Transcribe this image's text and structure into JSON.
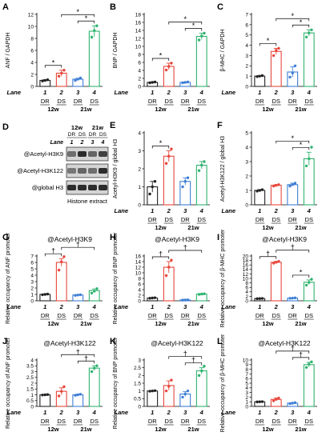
{
  "colors": {
    "DR": "#222222",
    "DS": "#e8463b",
    "DR21": "#3f7fd6",
    "DS21": "#2fb36f",
    "blot": "#1a1a1a"
  },
  "blot": {
    "panel_label": "D",
    "group_headers": [
      "12w",
      "21w"
    ],
    "condition_labels": [
      "DR",
      "DS",
      "DR",
      "DS"
    ],
    "lane_prefix": "Lane",
    "lanes": [
      "1",
      "2",
      "3",
      "4"
    ],
    "row_labels": [
      "@Acetyl-H3K9",
      "@Acetyl-H3K122",
      "@global H3"
    ],
    "footer": "Histone extract"
  },
  "chart_data": [
    {
      "panel": "A",
      "type": "bar",
      "title": "",
      "ylabel": "ANF / GAPDH",
      "ylim": [
        0,
        12
      ],
      "yticks": [
        0,
        2,
        4,
        6,
        8,
        10,
        12
      ],
      "lane_prefix": "Lane",
      "categories": [
        "1",
        "2",
        "3",
        "4"
      ],
      "groups": [
        "DR",
        "DS",
        "DR",
        "DS"
      ],
      "timepoints": [
        "12w",
        "21w"
      ],
      "values": [
        1.0,
        2.2,
        1.2,
        9.2
      ],
      "errors": [
        0.1,
        0.5,
        0.15,
        0.9
      ],
      "points": [
        [
          0.9,
          1.0,
          1.1
        ],
        [
          1.7,
          2.2,
          2.7
        ],
        [
          1.0,
          1.2,
          1.4
        ],
        [
          8.2,
          9.3,
          10.1
        ]
      ],
      "annotations": [
        {
          "from": 1,
          "to": 2,
          "label": "*"
        },
        {
          "from": 3,
          "to": 4,
          "label": "*"
        },
        {
          "from": 2,
          "to": 4,
          "label": "*"
        }
      ]
    },
    {
      "panel": "B",
      "type": "bar",
      "title": "",
      "ylabel": "BNP / GAPDH",
      "ylim": [
        0,
        18
      ],
      "yticks": [
        0,
        2,
        4,
        6,
        8,
        10,
        12,
        14,
        16,
        18
      ],
      "lane_prefix": "Lane",
      "categories": [
        "1",
        "2",
        "3",
        "4"
      ],
      "groups": [
        "DR",
        "DS",
        "DR",
        "DS"
      ],
      "timepoints": [
        "12w",
        "21w"
      ],
      "values": [
        1.0,
        5.0,
        1.0,
        12.5
      ],
      "errors": [
        0.1,
        0.8,
        0.1,
        0.8
      ],
      "points": [
        [
          0.9,
          1.0,
          1.1
        ],
        [
          4.1,
          5.0,
          5.8
        ],
        [
          0.9,
          1.0,
          1.1
        ],
        [
          11.6,
          12.6,
          13.3
        ]
      ],
      "annotations": [
        {
          "from": 1,
          "to": 2,
          "label": "*"
        },
        {
          "from": 3,
          "to": 4,
          "label": "*"
        },
        {
          "from": 2,
          "to": 4,
          "label": "*"
        }
      ]
    },
    {
      "panel": "C",
      "type": "bar",
      "title": "",
      "ylabel": "β-MHC / GAPDH",
      "ylim": [
        0,
        7
      ],
      "yticks": [
        0,
        1,
        2,
        3,
        4,
        5,
        6,
        7
      ],
      "lane_prefix": "Lane",
      "categories": [
        "1",
        "2",
        "3",
        "4"
      ],
      "groups": [
        "DR",
        "DS",
        "DR",
        "DS"
      ],
      "timepoints": [
        "12w",
        "21w"
      ],
      "values": [
        1.0,
        3.4,
        1.4,
        5.2
      ],
      "errors": [
        0.05,
        0.3,
        0.5,
        0.3
      ],
      "points": [
        [
          0.95,
          1.0,
          1.05
        ],
        [
          3.0,
          3.5,
          3.7
        ],
        [
          0.9,
          1.3,
          2.0
        ],
        [
          4.8,
          5.2,
          5.5
        ]
      ],
      "annotations": [
        {
          "from": 1,
          "to": 2,
          "label": "*"
        },
        {
          "from": 3,
          "to": 4,
          "label": "*"
        },
        {
          "from": 2,
          "to": 4,
          "label": "*"
        }
      ]
    },
    {
      "panel": "E",
      "type": "bar",
      "title": "",
      "ylabel": "Acetyl-H3K9 / global H3",
      "ylim": [
        0,
        4
      ],
      "yticks": [
        0,
        1,
        2,
        3,
        4
      ],
      "lane_prefix": "Lane",
      "categories": [
        "1",
        "2",
        "3",
        "4"
      ],
      "groups": [
        "DR",
        "DS",
        "DR",
        "DS"
      ],
      "timepoints": [
        "12w",
        "21w"
      ],
      "values": [
        1.0,
        2.7,
        1.3,
        2.2
      ],
      "errors": [
        0.3,
        0.3,
        0.2,
        0.2
      ],
      "points": [
        [
          0.6,
          1.0,
          1.3
        ],
        [
          2.3,
          2.7,
          3.1
        ],
        [
          1.0,
          1.3,
          1.5
        ],
        [
          1.9,
          2.2,
          2.4
        ]
      ],
      "annotations": [
        {
          "from": 1,
          "to": 2,
          "label": "*"
        }
      ]
    },
    {
      "panel": "F",
      "type": "bar",
      "title": "",
      "ylabel": "Acetyl-H3K122 / global H3",
      "ylim": [
        0,
        5
      ],
      "yticks": [
        0,
        1,
        2,
        3,
        4,
        5
      ],
      "lane_prefix": "Lane",
      "categories": [
        "1",
        "2",
        "3",
        "4"
      ],
      "groups": [
        "DR",
        "DS",
        "DR",
        "DS"
      ],
      "timepoints": [
        "12w",
        "21w"
      ],
      "values": [
        1.0,
        1.35,
        1.4,
        3.2
      ],
      "errors": [
        0.05,
        0.05,
        0.1,
        0.45
      ],
      "points": [
        [
          0.95,
          1.0,
          1.05
        ],
        [
          1.3,
          1.35,
          1.4
        ],
        [
          1.3,
          1.4,
          1.5
        ],
        [
          2.7,
          3.2,
          4.0
        ]
      ],
      "annotations": [
        {
          "from": 3,
          "to": 4,
          "label": "*"
        },
        {
          "from": 2,
          "to": 4,
          "label": "*"
        }
      ]
    },
    {
      "panel": "G",
      "type": "bar",
      "title": "@Acetyl-H3K9",
      "ylabel": "Relative occupancy of ANF promoter",
      "ylim": [
        0,
        7
      ],
      "yticks": [
        0,
        1,
        2,
        3,
        4,
        5,
        6,
        7
      ],
      "lane_prefix": "Lane",
      "categories": [
        "1",
        "2",
        "3",
        "4"
      ],
      "groups": [
        "DR",
        "DS",
        "DR",
        "DS"
      ],
      "timepoints": [
        "12w",
        "21w"
      ],
      "values": [
        1.0,
        6.0,
        0.9,
        1.6
      ],
      "errors": [
        0.05,
        0.6,
        0.05,
        0.25
      ],
      "points": [
        [
          0.95,
          1.0,
          1.05
        ],
        [
          4.8,
          6.1,
          6.9
        ],
        [
          0.85,
          0.9,
          0.95
        ],
        [
          1.2,
          1.5,
          1.9
        ]
      ],
      "annotations": [
        {
          "from": 1,
          "to": 2,
          "label": "†"
        },
        {
          "from": 2,
          "to": 4,
          "label": "†"
        }
      ]
    },
    {
      "panel": "H",
      "type": "bar",
      "title": "@Acetyl-H3K9",
      "ylabel": "Relative occupancy of BNP promoter",
      "ylim": [
        0,
        16
      ],
      "yticks": [
        0,
        2,
        4,
        6,
        8,
        10,
        12,
        14,
        16
      ],
      "lane_prefix": "Lane",
      "categories": [
        "1",
        "2",
        "3",
        "4"
      ],
      "groups": [
        "DR",
        "DS",
        "DR",
        "DS"
      ],
      "timepoints": [
        "12w",
        "21w"
      ],
      "values": [
        1.0,
        12.0,
        0.3,
        2.4
      ],
      "errors": [
        0.1,
        2.0,
        0.05,
        0.1
      ],
      "points": [
        [
          0.9,
          1.0,
          1.1
        ],
        [
          9.0,
          12.0,
          14.5
        ],
        [
          0.25,
          0.3,
          0.35
        ],
        [
          2.3,
          2.4,
          2.5
        ]
      ],
      "annotations": [
        {
          "from": 1,
          "to": 2,
          "label": "†"
        },
        {
          "from": 2,
          "to": 4,
          "label": "†"
        }
      ]
    },
    {
      "panel": "I",
      "type": "bar",
      "title": "@Acetyl-H3K9",
      "ylabel": "Relative occupancy of β-MHC promoter",
      "ylim": [
        0,
        20
      ],
      "yticks": [
        0,
        2,
        4,
        6,
        8,
        10,
        12,
        14,
        16,
        18,
        20
      ],
      "lane_prefix": "Lane",
      "categories": [
        "1",
        "2",
        "3",
        "4"
      ],
      "groups": [
        "DR",
        "DS",
        "DR",
        "DS"
      ],
      "timepoints": [
        "12w",
        "21w"
      ],
      "values": [
        1.0,
        17.2,
        1.2,
        8.3
      ],
      "errors": [
        0.05,
        0.4,
        0.1,
        1.0
      ],
      "points": [
        [
          0.95,
          1.0,
          1.05
        ],
        [
          16.8,
          17.2,
          17.6
        ],
        [
          1.1,
          1.2,
          1.3
        ],
        [
          7.0,
          8.2,
          9.6
        ]
      ],
      "annotations": [
        {
          "from": 1,
          "to": 2,
          "label": "†"
        },
        {
          "from": 3,
          "to": 4,
          "label": "*"
        },
        {
          "from": 2,
          "to": 4,
          "label": "†"
        }
      ]
    },
    {
      "panel": "J",
      "type": "bar",
      "title": "@Acetyl-H3K122",
      "ylabel": "Relative occupancy of ANF promoter",
      "ylim": [
        0,
        4
      ],
      "yticks": [
        0,
        0.5,
        1,
        1.5,
        2,
        2.5,
        3,
        3.5,
        4
      ],
      "lane_prefix": "Lane",
      "categories": [
        "1",
        "2",
        "3",
        "4"
      ],
      "groups": [
        "DR",
        "DS",
        "DR",
        "DS"
      ],
      "timepoints": [
        "12w",
        "21w"
      ],
      "values": [
        1.0,
        1.3,
        1.0,
        3.3
      ],
      "errors": [
        0.02,
        0.3,
        0.05,
        0.2
      ],
      "points": [
        [
          0.98,
          1.0,
          1.02
        ],
        [
          0.9,
          1.3,
          1.7
        ],
        [
          0.95,
          1.0,
          1.05
        ],
        [
          3.0,
          3.3,
          3.5
        ]
      ],
      "annotations": [
        {
          "from": 3,
          "to": 4,
          "label": "†"
        },
        {
          "from": 2,
          "to": 4,
          "label": "†"
        }
      ]
    },
    {
      "panel": "K",
      "type": "bar",
      "title": "@Acetyl-H3K122",
      "ylabel": "Relative occupancy of BNP promoter",
      "ylim": [
        0,
        3
      ],
      "yticks": [
        0,
        0.5,
        1,
        1.5,
        2,
        2.5,
        3
      ],
      "lane_prefix": "Lane",
      "categories": [
        "1",
        "2",
        "3",
        "4"
      ],
      "groups": [
        "DR",
        "DS",
        "DR",
        "DS"
      ],
      "timepoints": [
        "12w",
        "21w"
      ],
      "values": [
        1.0,
        1.35,
        0.8,
        2.3
      ],
      "errors": [
        0.02,
        0.3,
        0.15,
        0.2
      ],
      "points": [
        [
          0.98,
          1.0,
          1.02
        ],
        [
          1.0,
          1.3,
          1.7
        ],
        [
          0.6,
          0.8,
          1.0
        ],
        [
          2.0,
          2.3,
          2.6
        ]
      ],
      "annotations": [
        {
          "from": 3,
          "to": 4,
          "label": "†"
        },
        {
          "from": 2,
          "to": 4,
          "label": "†"
        }
      ]
    },
    {
      "panel": "L",
      "type": "bar",
      "title": "@Acetyl-H3K122",
      "ylabel": "Relative occupancy of β-MHC promoter",
      "ylim": [
        0,
        10
      ],
      "yticks": [
        0,
        1,
        2,
        3,
        4,
        5,
        6,
        7,
        8,
        9,
        10
      ],
      "lane_prefix": "Lane",
      "categories": [
        "1",
        "2",
        "3",
        "4"
      ],
      "groups": [
        "DR",
        "DS",
        "DR",
        "DS"
      ],
      "timepoints": [
        "12w",
        "21w"
      ],
      "values": [
        1.0,
        1.5,
        0.7,
        9.0
      ],
      "errors": [
        0.03,
        0.3,
        0.1,
        0.5
      ],
      "points": [
        [
          0.97,
          1.0,
          1.03
        ],
        [
          1.2,
          1.5,
          1.8
        ],
        [
          0.6,
          0.7,
          0.8
        ],
        [
          8.4,
          9.1,
          9.6
        ]
      ],
      "annotations": [
        {
          "from": 3,
          "to": 4,
          "label": "†"
        },
        {
          "from": 2,
          "to": 4,
          "label": "†"
        }
      ]
    }
  ]
}
